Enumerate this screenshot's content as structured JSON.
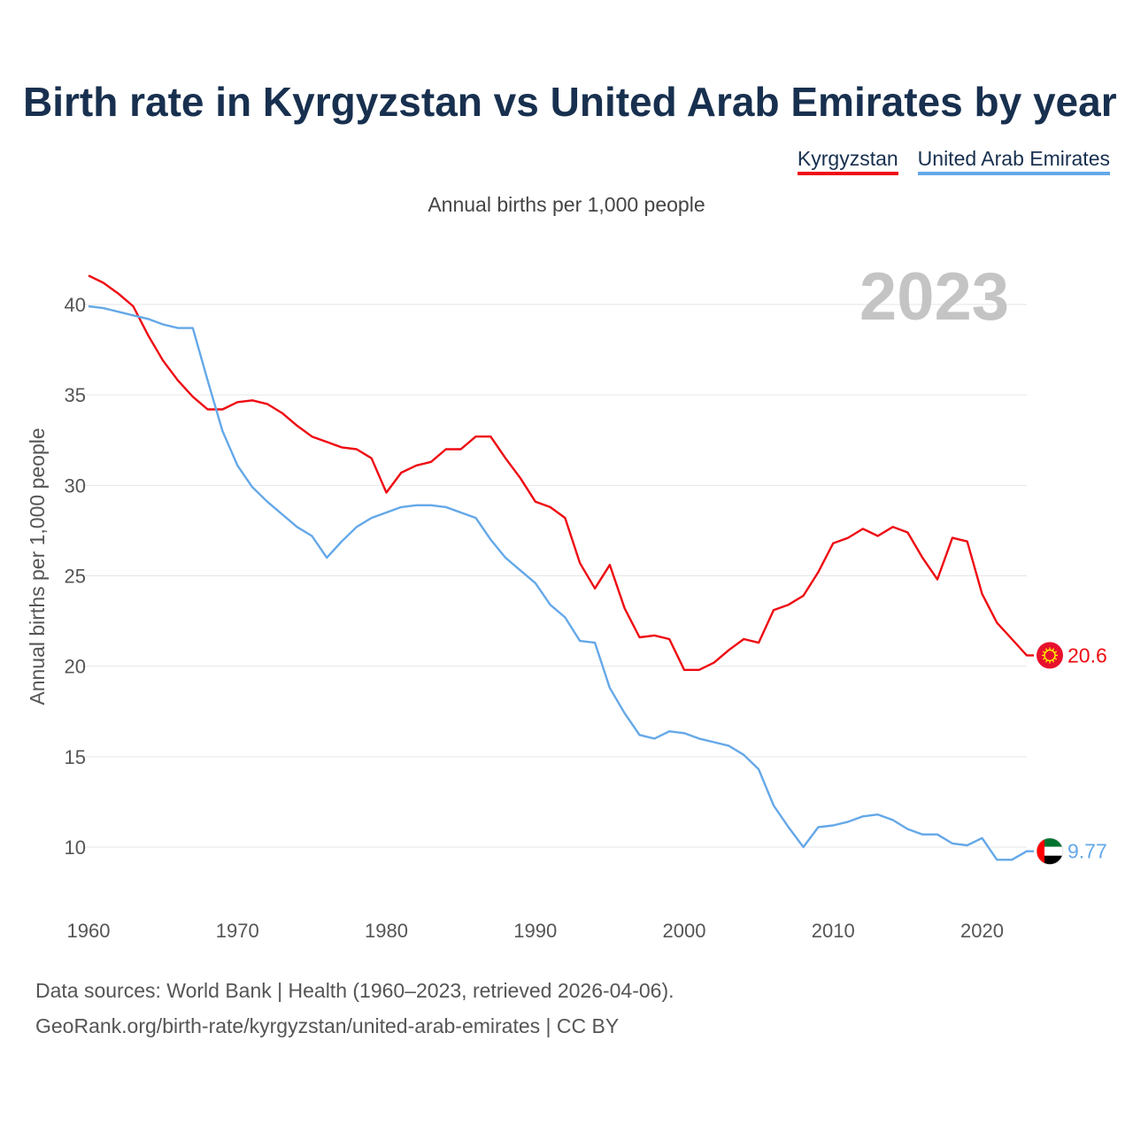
{
  "header": {
    "title": "Birth rate in Kyrgyzstan vs United Arab Emirates by year",
    "subtitle": "Annual births per 1,000 people"
  },
  "legend": [
    {
      "label": "Kyrgyzstan",
      "color": "#ee0a12"
    },
    {
      "label": "United Arab Emirates",
      "color": "#64a8e8"
    }
  ],
  "footer": {
    "line1": "Data sources: World Bank | Health (1960–2023, retrieved 2026-04-06).",
    "line2": "GeoRank.org/birth-rate/kyrgyzstan/united-arab-emirates | CC BY"
  },
  "chart_data": {
    "type": "line",
    "title": "Birth rate in Kyrgyzstan vs United Arab Emirates by year",
    "ylabel": "Annual births per 1,000 people",
    "xlabel": "",
    "current_year_label": "2023",
    "xlim": [
      1960,
      2023
    ],
    "ylim": [
      7,
      42
    ],
    "xticks": [
      1960,
      1970,
      1980,
      1990,
      2000,
      2010,
      2020
    ],
    "yticks": [
      10,
      15,
      20,
      25,
      30,
      35,
      40
    ],
    "grid": true,
    "x_start": 1960,
    "series": [
      {
        "name": "Kyrgyzstan",
        "color": "#ee0a12",
        "end_label": "20.6",
        "flag_icon": "kyrgyzstan-flag-icon",
        "values": [
          41.6,
          41.2,
          40.6,
          39.9,
          38.3,
          36.9,
          35.8,
          34.9,
          34.2,
          34.2,
          34.6,
          34.7,
          34.5,
          34.0,
          33.3,
          32.7,
          32.4,
          32.1,
          32.0,
          31.5,
          29.6,
          30.7,
          31.1,
          31.3,
          32.0,
          32.0,
          32.7,
          32.7,
          31.5,
          30.4,
          29.1,
          28.8,
          28.2,
          25.7,
          24.3,
          25.6,
          23.2,
          21.6,
          21.7,
          21.5,
          19.8,
          19.8,
          20.2,
          20.9,
          21.5,
          21.3,
          23.1,
          23.4,
          23.9,
          25.2,
          26.8,
          27.1,
          27.6,
          27.2,
          27.7,
          27.4,
          26.0,
          24.8,
          27.1,
          26.9,
          24.0,
          22.4,
          21.5,
          20.6
        ]
      },
      {
        "name": "United Arab Emirates",
        "color": "#64a8e8",
        "end_label": "9.77",
        "flag_icon": "uae-flag-icon",
        "values": [
          39.9,
          39.8,
          39.6,
          39.4,
          39.2,
          38.9,
          38.7,
          38.7,
          35.8,
          33.0,
          31.1,
          29.9,
          29.1,
          28.4,
          27.7,
          27.2,
          26.0,
          26.9,
          27.7,
          28.2,
          28.5,
          28.8,
          28.9,
          28.9,
          28.8,
          28.5,
          28.2,
          27.0,
          26.0,
          25.3,
          24.6,
          23.4,
          22.7,
          21.4,
          21.3,
          18.8,
          17.4,
          16.2,
          16.0,
          16.4,
          16.3,
          16.0,
          15.8,
          15.6,
          15.1,
          14.3,
          12.3,
          11.1,
          10.0,
          11.1,
          11.2,
          11.4,
          11.7,
          11.8,
          11.5,
          11.0,
          10.7,
          10.7,
          10.2,
          10.1,
          10.5,
          9.3,
          9.3,
          9.77
        ]
      }
    ]
  }
}
